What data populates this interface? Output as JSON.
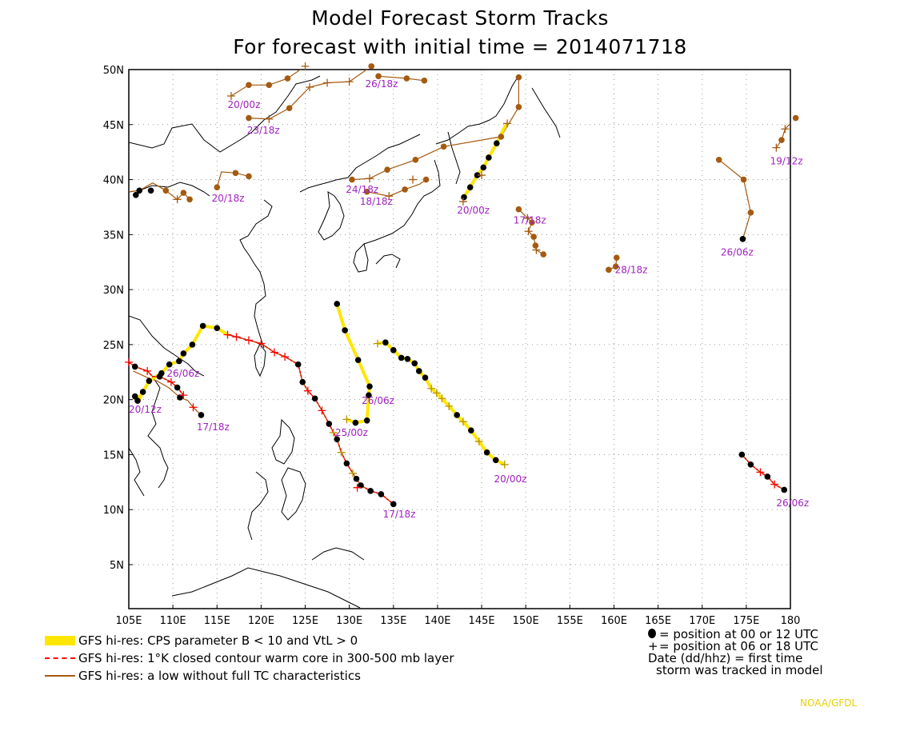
{
  "title_line1": "Model Forecast Storm Tracks",
  "title_line2": "For forecast with initial time = 2014071718",
  "colors": {
    "yellow": "#ffe600",
    "red": "#ff0000",
    "brown": "#a55a10",
    "label": "#a020c0"
  },
  "map": {
    "lon_range": [
      105,
      180
    ],
    "lat_range": [
      1,
      50
    ],
    "lon_ticks": [
      "105E",
      "110E",
      "115E",
      "120E",
      "125E",
      "130E",
      "135E",
      "140E",
      "145E",
      "150E",
      "155E",
      "160E",
      "165E",
      "170E",
      "175E",
      "180"
    ],
    "lat_ticks": [
      "5N",
      "10N",
      "15N",
      "20N",
      "25N",
      "30N",
      "35N",
      "40N",
      "45N",
      "50N"
    ]
  },
  "tracks": [
    {
      "kind": "brown",
      "pts": [
        [
          107.7,
          39.7
        ],
        [
          106.2,
          39.0
        ],
        [
          105.0,
          38.9
        ]
      ]
    },
    {
      "kind": "brown",
      "pts": [
        [
          107.7,
          39.7
        ],
        [
          109.2,
          39.0
        ],
        [
          110.5,
          38.2
        ],
        [
          111.2,
          38.8
        ],
        [
          111.9,
          38.2
        ]
      ]
    },
    {
      "kind": "brown",
      "pts": [
        [
          115.0,
          39.3
        ],
        [
          115.5,
          40.7
        ],
        [
          117.1,
          40.6
        ],
        [
          118.6,
          40.3
        ]
      ]
    },
    {
      "kind": "brown",
      "pts": [
        [
          116.6,
          47.6
        ],
        [
          118.6,
          48.6
        ],
        [
          120.9,
          48.6
        ],
        [
          123.0,
          49.2
        ],
        [
          125.0,
          50.3
        ],
        [
          128.8,
          50.8
        ]
      ]
    },
    {
      "kind": "brown",
      "pts": [
        [
          118.6,
          45.6
        ],
        [
          120.9,
          45.5
        ],
        [
          123.2,
          46.5
        ],
        [
          125.5,
          48.4
        ],
        [
          127.5,
          48.8
        ],
        [
          130.0,
          48.9
        ],
        [
          132.5,
          50.3
        ]
      ]
    },
    {
      "kind": "brown",
      "pts": [
        [
          130.3,
          40.0
        ],
        [
          132.3,
          40.1
        ],
        [
          134.3,
          40.9
        ],
        [
          137.5,
          41.8
        ],
        [
          140.7,
          43.0
        ],
        [
          147.2,
          43.9
        ],
        [
          149.2,
          46.6
        ],
        [
          149.2,
          49.3
        ]
      ]
    },
    {
      "kind": "brown",
      "pts": [
        [
          132.0,
          38.9
        ],
        [
          134.5,
          38.5
        ],
        [
          136.3,
          39.1
        ],
        [
          138.0,
          39.6
        ],
        [
          138.7,
          40.0
        ]
      ]
    },
    {
      "kind": "brown",
      "pts": [
        [
          133.3,
          49.4
        ],
        [
          136.5,
          49.2
        ],
        [
          138.5,
          49.0
        ]
      ]
    },
    {
      "kind": "brown",
      "pts": [
        [
          149.2,
          37.3
        ],
        [
          150.2,
          36.5
        ],
        [
          150.7,
          36.1
        ],
        [
          150.3,
          35.3
        ],
        [
          150.9,
          34.8
        ],
        [
          151.1,
          34.0
        ],
        [
          151.2,
          33.6
        ],
        [
          152.0,
          33.2
        ]
      ]
    },
    {
      "kind": "brown",
      "pts": [
        [
          159.4,
          31.8
        ],
        [
          160.2,
          32.1
        ],
        [
          160.3,
          32.9
        ]
      ]
    },
    {
      "kind": "brown",
      "pts": [
        [
          171.9,
          41.8
        ],
        [
          174.7,
          40.0
        ],
        [
          175.5,
          37.0
        ],
        [
          174.6,
          34.6
        ]
      ]
    },
    {
      "kind": "brown",
      "pts": [
        [
          178.4,
          42.9
        ],
        [
          179.0,
          43.6
        ],
        [
          179.4,
          44.6
        ],
        [
          180.6,
          45.6
        ]
      ]
    },
    {
      "kind": "brown",
      "pts": [
        [
          105.5,
          22.6
        ],
        [
          107.1,
          22.0
        ],
        [
          108.2,
          21.7
        ],
        [
          109.5,
          21.1
        ],
        [
          110.8,
          20.2
        ],
        [
          111.7,
          19.9
        ],
        [
          112.3,
          19.3
        ],
        [
          113.2,
          18.6
        ]
      ]
    },
    {
      "kind": "brown",
      "pts": [
        [
          143.0,
          38.5
        ],
        [
          144.0,
          39.9
        ],
        [
          145.0,
          40.4
        ]
      ]
    },
    {
      "kind": "yellow",
      "pts": [
        [
          105.7,
          20.3
        ],
        [
          106.3,
          20.2
        ],
        [
          106.6,
          20.7
        ],
        [
          107.3,
          21.7
        ],
        [
          108.7,
          22.4
        ],
        [
          109.6,
          23.2
        ],
        [
          110.7,
          23.5
        ],
        [
          111.2,
          24.2
        ],
        [
          112.2,
          25.0
        ],
        [
          113.4,
          26.7
        ],
        [
          115.0,
          26.5
        ],
        [
          116.2,
          25.9
        ]
      ]
    },
    {
      "kind": "yellow",
      "pts": [
        [
          106.0,
          19.9
        ],
        [
          106.2,
          20.0
        ],
        [
          106.6,
          20.9
        ]
      ]
    },
    {
      "kind": "yellow",
      "pts": [
        [
          128.6,
          28.7
        ],
        [
          129.5,
          26.3
        ],
        [
          131.0,
          23.6
        ],
        [
          132.3,
          21.2
        ],
        [
          132.2,
          20.4
        ],
        [
          132.0,
          18.1
        ],
        [
          130.7,
          17.9
        ],
        [
          129.7,
          18.2
        ]
      ]
    },
    {
      "kind": "yellow",
      "pts": [
        [
          133.2,
          25.1
        ],
        [
          134.1,
          25.2
        ],
        [
          135.0,
          24.5
        ],
        [
          135.9,
          23.8
        ],
        [
          136.6,
          23.7
        ],
        [
          137.4,
          23.3
        ],
        [
          137.9,
          22.6
        ],
        [
          138.6,
          22.0
        ],
        [
          139.3,
          21.0
        ],
        [
          139.9,
          20.6
        ],
        [
          140.5,
          20.1
        ],
        [
          141.3,
          19.4
        ],
        [
          142.2,
          18.6
        ],
        [
          142.9,
          18.0
        ],
        [
          143.8,
          17.2
        ],
        [
          144.7,
          16.2
        ],
        [
          145.6,
          15.2
        ],
        [
          146.6,
          14.5
        ],
        [
          147.6,
          14.1
        ]
      ]
    },
    {
      "kind": "yellow",
      "pts": [
        [
          143.0,
          38.4
        ],
        [
          143.7,
          39.3
        ],
        [
          144.5,
          40.4
        ],
        [
          145.2,
          41.1
        ],
        [
          145.8,
          42.0
        ],
        [
          146.7,
          43.3
        ],
        [
          147.5,
          44.6
        ],
        [
          147.9,
          45.1
        ]
      ]
    },
    {
      "kind": "red",
      "pts": [
        [
          105.0,
          23.4
        ],
        [
          105.7,
          23.0
        ],
        [
          107.1,
          22.6
        ],
        [
          107.7,
          22.1
        ],
        [
          108.5,
          22.1
        ],
        [
          109.8,
          21.6
        ],
        [
          110.5,
          21.1
        ],
        [
          111.2,
          20.4
        ]
      ]
    },
    {
      "kind": "red",
      "pts": [
        [
          116.2,
          25.9
        ],
        [
          117.2,
          25.7
        ],
        [
          118.6,
          25.4
        ],
        [
          120.0,
          25.1
        ],
        [
          121.5,
          24.3
        ],
        [
          122.7,
          23.9
        ],
        [
          124.2,
          23.2
        ],
        [
          124.7,
          21.6
        ],
        [
          125.3,
          20.8
        ],
        [
          126.1,
          20.1
        ],
        [
          126.9,
          19.0
        ],
        [
          127.7,
          17.8
        ],
        [
          128.6,
          16.4
        ],
        [
          129.1,
          15.2
        ],
        [
          129.7,
          14.2
        ],
        [
          130.4,
          13.3
        ],
        [
          130.8,
          12.8
        ],
        [
          131.3,
          12.2
        ],
        [
          132.4,
          11.7
        ],
        [
          133.6,
          11.4
        ],
        [
          135.0,
          10.5
        ]
      ]
    },
    {
      "kind": "red",
      "pts": [
        [
          174.5,
          15.0
        ],
        [
          175.5,
          14.1
        ],
        [
          176.6,
          13.4
        ],
        [
          177.4,
          13.0
        ],
        [
          178.2,
          12.3
        ],
        [
          179.3,
          11.8
        ]
      ]
    }
  ],
  "markers_dot": [
    [
      105.8,
      38.6
    ],
    [
      106.2,
      39.0
    ],
    [
      107.5,
      39.0
    ],
    [
      109.2,
      39.0
    ],
    [
      111.2,
      38.8
    ],
    [
      111.9,
      38.2
    ],
    [
      115.0,
      39.3
    ],
    [
      117.1,
      40.6
    ],
    [
      118.6,
      40.3
    ],
    [
      118.6,
      48.6
    ],
    [
      120.9,
      48.6
    ],
    [
      123.0,
      49.2
    ],
    [
      123.2,
      46.5
    ],
    [
      118.6,
      45.6
    ],
    [
      132.5,
      50.3
    ],
    [
      133.3,
      49.4
    ],
    [
      136.5,
      49.2
    ],
    [
      138.5,
      49.0
    ],
    [
      130.3,
      40.0
    ],
    [
      134.3,
      40.9
    ],
    [
      137.5,
      41.8
    ],
    [
      140.7,
      43.0
    ],
    [
      147.2,
      43.9
    ],
    [
      149.2,
      46.6
    ],
    [
      149.2,
      49.3
    ],
    [
      132.0,
      38.9
    ],
    [
      136.3,
      39.1
    ],
    [
      138.7,
      40.0
    ],
    [
      149.2,
      37.3
    ],
    [
      150.7,
      36.1
    ],
    [
      150.9,
      34.8
    ],
    [
      151.1,
      34.0
    ],
    [
      152.0,
      33.2
    ],
    [
      159.4,
      31.8
    ],
    [
      160.2,
      32.1
    ],
    [
      160.3,
      32.9
    ],
    [
      171.9,
      41.8
    ],
    [
      174.7,
      40.0
    ],
    [
      175.5,
      37.0
    ],
    [
      174.6,
      34.6
    ],
    [
      179.0,
      43.6
    ],
    [
      180.6,
      45.6
    ],
    [
      113.2,
      18.6
    ],
    [
      110.8,
      20.2
    ],
    [
      105.7,
      20.3
    ],
    [
      106.0,
      19.9
    ],
    [
      106.6,
      20.7
    ],
    [
      107.3,
      21.7
    ],
    [
      108.7,
      22.4
    ],
    [
      109.6,
      23.2
    ],
    [
      110.7,
      23.5
    ],
    [
      111.2,
      24.2
    ],
    [
      112.2,
      25.0
    ],
    [
      113.4,
      26.7
    ],
    [
      115.0,
      26.5
    ],
    [
      105.7,
      23.0
    ],
    [
      108.5,
      22.1
    ],
    [
      110.5,
      21.1
    ],
    [
      124.2,
      23.2
    ],
    [
      124.7,
      21.6
    ],
    [
      126.1,
      20.1
    ],
    [
      127.7,
      17.8
    ],
    [
      128.6,
      16.4
    ],
    [
      129.7,
      14.2
    ],
    [
      130.8,
      12.8
    ],
    [
      131.3,
      12.2
    ],
    [
      132.4,
      11.7
    ],
    [
      133.6,
      11.4
    ],
    [
      135.0,
      10.5
    ],
    [
      128.6,
      28.7
    ],
    [
      129.5,
      26.3
    ],
    [
      131.0,
      23.6
    ],
    [
      132.3,
      21.2
    ],
    [
      132.2,
      20.4
    ],
    [
      132.0,
      18.1
    ],
    [
      130.7,
      17.9
    ],
    [
      134.1,
      25.2
    ],
    [
      135.0,
      24.5
    ],
    [
      135.9,
      23.8
    ],
    [
      136.6,
      23.7
    ],
    [
      137.4,
      23.3
    ],
    [
      137.9,
      22.6
    ],
    [
      138.6,
      22.0
    ],
    [
      142.2,
      18.6
    ],
    [
      143.8,
      17.2
    ],
    [
      145.6,
      15.2
    ],
    [
      146.6,
      14.5
    ],
    [
      143.0,
      38.4
    ],
    [
      143.7,
      39.3
    ],
    [
      144.5,
      40.4
    ],
    [
      145.2,
      41.1
    ],
    [
      145.8,
      42.0
    ],
    [
      146.7,
      43.3
    ],
    [
      174.5,
      15.0
    ],
    [
      175.5,
      14.1
    ],
    [
      177.4,
      13.0
    ],
    [
      179.3,
      11.8
    ]
  ],
  "markers_plus": [
    [
      105.0,
      23.4
    ],
    [
      107.1,
      22.6
    ],
    [
      109.8,
      21.6
    ],
    [
      111.2,
      20.4
    ],
    [
      112.3,
      19.3
    ],
    [
      110.5,
      38.2
    ],
    [
      116.6,
      47.6
    ],
    [
      120.9,
      45.5
    ],
    [
      125.0,
      50.3
    ],
    [
      125.5,
      48.4
    ],
    [
      127.5,
      48.8
    ],
    [
      130.0,
      48.9
    ],
    [
      132.3,
      40.1
    ],
    [
      134.5,
      38.5
    ],
    [
      137.2,
      40.0
    ],
    [
      150.2,
      36.5
    ],
    [
      150.3,
      35.3
    ],
    [
      151.2,
      33.6
    ],
    [
      178.4,
      42.9
    ],
    [
      179.4,
      44.6
    ],
    [
      116.2,
      25.9
    ],
    [
      117.2,
      25.7
    ],
    [
      118.6,
      25.4
    ],
    [
      120.0,
      25.1
    ],
    [
      121.5,
      24.3
    ],
    [
      122.7,
      23.9
    ],
    [
      125.3,
      20.8
    ],
    [
      126.9,
      19.0
    ],
    [
      128.2,
      17.0
    ],
    [
      129.1,
      15.2
    ],
    [
      130.4,
      13.3
    ],
    [
      130.9,
      12.0
    ],
    [
      129.7,
      18.2
    ],
    [
      133.2,
      25.1
    ],
    [
      139.3,
      21.0
    ],
    [
      139.9,
      20.6
    ],
    [
      140.5,
      20.1
    ],
    [
      141.3,
      19.4
    ],
    [
      142.9,
      18.0
    ],
    [
      144.7,
      16.2
    ],
    [
      147.6,
      14.1
    ],
    [
      147.9,
      45.1
    ],
    [
      142.9,
      38.0
    ],
    [
      145.0,
      40.4
    ],
    [
      176.6,
      13.4
    ],
    [
      178.2,
      12.3
    ]
  ],
  "labels": [
    {
      "text": "26/18z",
      "lon": 131.8,
      "lat": 48.4
    },
    {
      "text": "20/00z",
      "lon": 116.2,
      "lat": 46.5
    },
    {
      "text": "23/18z",
      "lon": 118.4,
      "lat": 44.2
    },
    {
      "text": "24/18z",
      "lon": 129.6,
      "lat": 38.8
    },
    {
      "text": "18/18z",
      "lon": 131.2,
      "lat": 37.7
    },
    {
      "text": "20/18z",
      "lon": 114.4,
      "lat": 38.0
    },
    {
      "text": "20/00z",
      "lon": 142.2,
      "lat": 36.9
    },
    {
      "text": "17/18z",
      "lon": 148.6,
      "lat": 36.0
    },
    {
      "text": "26/06z",
      "lon": 172.1,
      "lat": 33.1
    },
    {
      "text": "28/18z",
      "lon": 160.1,
      "lat": 31.5
    },
    {
      "text": "19/12z",
      "lon": 177.7,
      "lat": 41.4
    },
    {
      "text": "26/06z",
      "lon": 109.3,
      "lat": 22.1
    },
    {
      "text": "20/12z",
      "lon": 105.0,
      "lat": 18.8
    },
    {
      "text": "17/18z",
      "lon": 112.7,
      "lat": 17.2
    },
    {
      "text": "26/06z",
      "lon": 131.4,
      "lat": 19.6
    },
    {
      "text": "25/00z",
      "lon": 128.4,
      "lat": 16.7
    },
    {
      "text": "20/00z",
      "lon": 146.4,
      "lat": 12.5
    },
    {
      "text": "17/18z",
      "lon": 133.8,
      "lat": 9.3
    },
    {
      "text": "26/06z",
      "lon": 178.4,
      "lat": 10.3
    }
  ],
  "legend": {
    "yellow_text": "GFS hi-res: CPS parameter B < 10 and VtL > 0",
    "red_text": "GFS hi-res: 1°K closed contour warm core in 300-500 mb layer",
    "brown_text": "GFS hi-res: a low without full TC characteristics",
    "dot_text": "= position at 00 or 12 UTC",
    "plus_text": "= position at 06 or 18 UTC",
    "date_text_1": "Date (dd/hhz)  = first time",
    "date_text_2": "storm was tracked in model"
  },
  "credit": "NOAA/GFDL"
}
